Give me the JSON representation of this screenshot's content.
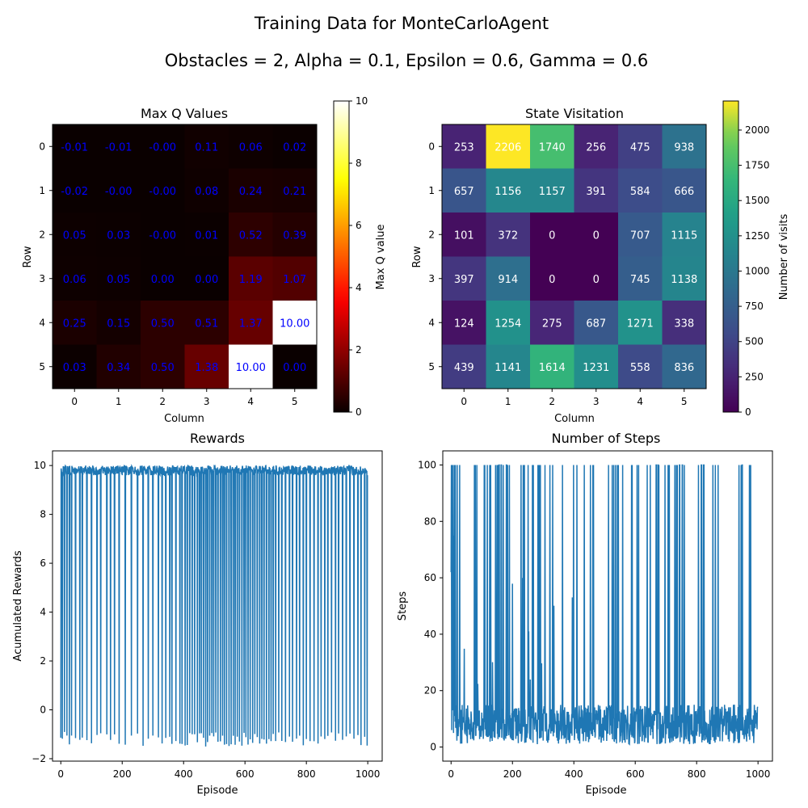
{
  "suptitle": "Training Data for MonteCarloAgent",
  "subtitle": "Obstacles = 2, Alpha = 0.1, Epsilon = 0.6, Gamma = 0.6",
  "chart_data": [
    {
      "type": "heatmap",
      "title": "Max Q Values",
      "xlabel": "Column",
      "ylabel": "Row",
      "x_ticks": [
        "0",
        "1",
        "2",
        "3",
        "4",
        "5"
      ],
      "y_ticks": [
        "0",
        "1",
        "2",
        "3",
        "4",
        "5"
      ],
      "colormap": "hot",
      "value_range": [
        0,
        10
      ],
      "colorbar_label": "Max Q value",
      "colorbar_ticks": [
        "0",
        "2",
        "4",
        "6",
        "8",
        "10"
      ],
      "annotation_color": "#0000ff",
      "values": [
        [
          -0.01,
          -0.01,
          -0.0,
          0.11,
          0.06,
          0.02
        ],
        [
          -0.02,
          -0.0,
          -0.0,
          0.08,
          0.24,
          0.21
        ],
        [
          0.05,
          0.03,
          -0.0,
          0.01,
          0.52,
          0.39
        ],
        [
          0.06,
          0.05,
          0.0,
          0.0,
          1.19,
          1.07
        ],
        [
          0.25,
          0.15,
          0.5,
          0.51,
          1.37,
          10.0
        ],
        [
          0.03,
          0.34,
          0.5,
          1.38,
          10.0,
          0.0
        ]
      ],
      "labels": [
        [
          "-0.01",
          "-0.01",
          "-0.00",
          "0.11",
          "0.06",
          "0.02"
        ],
        [
          "-0.02",
          "-0.00",
          "-0.00",
          "0.08",
          "0.24",
          "0.21"
        ],
        [
          "0.05",
          "0.03",
          "-0.00",
          "0.01",
          "0.52",
          "0.39"
        ],
        [
          "0.06",
          "0.05",
          "0.00",
          "0.00",
          "1.19",
          "1.07"
        ],
        [
          "0.25",
          "0.15",
          "0.50",
          "0.51",
          "1.37",
          "10.00"
        ],
        [
          "0.03",
          "0.34",
          "0.50",
          "1.38",
          "10.00",
          "0.00"
        ]
      ]
    },
    {
      "type": "heatmap",
      "title": "State Visitation",
      "xlabel": "Column",
      "ylabel": "Row",
      "x_ticks": [
        "0",
        "1",
        "2",
        "3",
        "4",
        "5"
      ],
      "y_ticks": [
        "0",
        "1",
        "2",
        "3",
        "4",
        "5"
      ],
      "colormap": "viridis",
      "value_range": [
        0,
        2206
      ],
      "colorbar_label": "Number of visits",
      "colorbar_ticks": [
        "0",
        "250",
        "500",
        "750",
        "1000",
        "1250",
        "1500",
        "1750",
        "2000"
      ],
      "annotation_color": "#ffffff",
      "values": [
        [
          253,
          2206,
          1740,
          256,
          475,
          938
        ],
        [
          657,
          1156,
          1157,
          391,
          584,
          666
        ],
        [
          101,
          372,
          0,
          0,
          707,
          1115
        ],
        [
          397,
          914,
          0,
          0,
          745,
          1138
        ],
        [
          124,
          1254,
          275,
          687,
          1271,
          338
        ],
        [
          439,
          1141,
          1614,
          1231,
          558,
          836
        ]
      ],
      "labels": [
        [
          "253",
          "2206",
          "1740",
          "256",
          "475",
          "938"
        ],
        [
          "657",
          "1156",
          "1157",
          "391",
          "584",
          "666"
        ],
        [
          "101",
          "372",
          "0",
          "0",
          "707",
          "1115"
        ],
        [
          "397",
          "914",
          "0",
          "0",
          "745",
          "1138"
        ],
        [
          "124",
          "1254",
          "275",
          "687",
          "1271",
          "338"
        ],
        [
          "439",
          "1141",
          "1614",
          "1231",
          "558",
          "836"
        ]
      ]
    },
    {
      "type": "line",
      "title": "Rewards",
      "xlabel": "Episode",
      "ylabel": "Acumulated Rewards",
      "xlim": [
        -27,
        1047
      ],
      "ylim": [
        -2.1,
        10.6
      ],
      "x_ticks": [
        "0",
        "200",
        "400",
        "600",
        "800",
        "1000"
      ],
      "y_ticks": [
        "−2",
        "0",
        "2",
        "4",
        "6",
        "8",
        "10"
      ],
      "color": "#1f77b4",
      "n_points": 1000,
      "series": [
        {
          "values_note": "",
          "high_value": 10,
          "low_value_range": [
            -1.5,
            -0.9
          ],
          "failure_episodes": [
            0,
            5,
            12,
            20,
            28,
            35,
            48,
            62,
            70,
            85,
            100,
            118,
            130,
            150,
            162,
            175,
            190,
            210,
            230,
            250,
            268,
            285,
            300,
            318,
            330,
            342,
            355,
            362,
            375,
            388,
            395,
            405,
            412,
            420,
            428,
            436,
            445,
            452,
            458,
            465,
            472,
            478,
            485,
            492,
            498,
            505,
            512,
            520,
            527,
            533,
            540,
            548,
            555,
            562,
            568,
            575,
            582,
            590,
            597,
            603,
            610,
            617,
            625,
            632,
            640,
            648,
            655,
            662,
            670,
            678,
            685,
            692,
            700,
            710,
            720,
            732,
            745,
            755,
            768,
            778,
            790,
            800,
            812,
            825,
            838,
            848,
            860,
            870,
            882,
            895,
            905,
            918,
            930,
            942,
            955,
            968,
            978,
            990,
            998
          ]
        }
      ]
    },
    {
      "type": "line",
      "title": "Number of Steps",
      "xlabel": "Episode",
      "ylabel": "Steps",
      "xlim": [
        -27,
        1047
      ],
      "ylim": [
        -5,
        105
      ],
      "x_ticks": [
        "0",
        "200",
        "400",
        "600",
        "800",
        "1000"
      ],
      "y_ticks": [
        "0",
        "20",
        "40",
        "60",
        "80",
        "100"
      ],
      "color": "#1f77b4",
      "n_points": 1000,
      "series": [
        {
          "max_value": 100,
          "typical_range": [
            1,
            15
          ],
          "early_values": [
            62,
            100,
            6,
            100,
            18,
            100,
            13,
            75,
            5,
            48,
            100,
            11,
            100,
            9,
            100,
            7
          ]
        }
      ]
    }
  ]
}
